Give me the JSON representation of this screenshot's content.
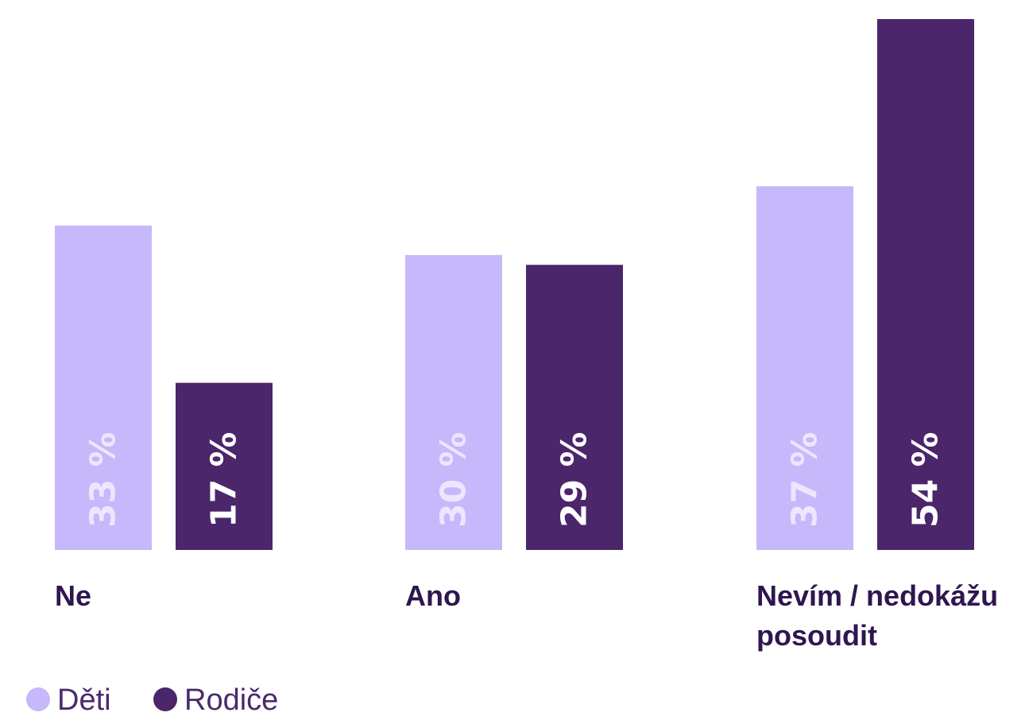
{
  "chart_data": {
    "type": "bar",
    "categories": [
      [
        "Ne"
      ],
      [
        "Ano"
      ],
      [
        "Nevím / nedokážu",
        "posoudit"
      ]
    ],
    "series": [
      {
        "name": "Děti",
        "color": "#c7b7fb",
        "label_color": "#ece6fe",
        "values": [
          33,
          30,
          37
        ],
        "labels": [
          "33 %",
          "30 %",
          "37 %"
        ]
      },
      {
        "name": "Rodiče",
        "color": "#4b266b",
        "label_color": "#ffffff",
        "values": [
          17,
          29,
          54
        ],
        "labels": [
          "17 %",
          "29 %",
          "54 %"
        ]
      }
    ],
    "unit": "%",
    "ylim": [
      0,
      54
    ],
    "grid": false,
    "legend_position": "bottom-left"
  }
}
